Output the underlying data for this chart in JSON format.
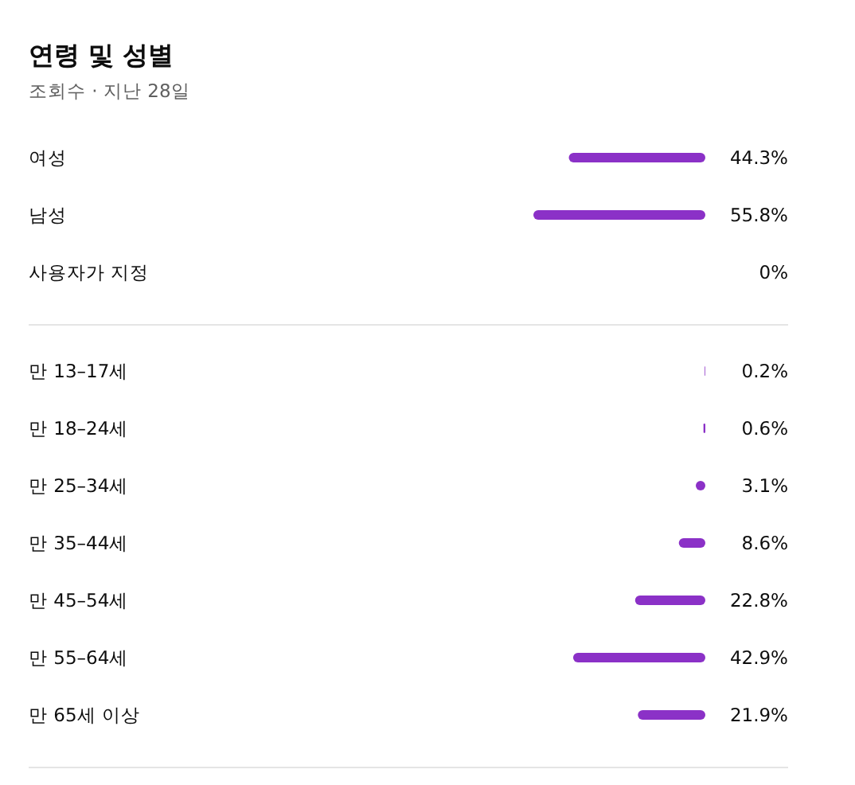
{
  "chart_data": [
    {
      "type": "bar",
      "orientation": "horizontal",
      "title": "연령 및 성별",
      "subtitle": "조회수 · 지난 28일",
      "categories": [
        "여성",
        "남성",
        "사용자가 지정"
      ],
      "values": [
        44.3,
        55.8,
        0
      ],
      "value_labels": [
        "44.3%",
        "55.8%",
        "0%"
      ],
      "color": "#8b31c7"
    },
    {
      "type": "bar",
      "orientation": "horizontal",
      "categories": [
        "만 13–17세",
        "만 18–24세",
        "만 25–34세",
        "만 35–44세",
        "만 45–54세",
        "만 55–64세",
        "만 65세 이상"
      ],
      "values": [
        0.2,
        0.6,
        3.1,
        8.6,
        22.8,
        42.9,
        21.9
      ],
      "value_labels": [
        "0.2%",
        "0.6%",
        "3.1%",
        "8.6%",
        "22.8%",
        "42.9%",
        "21.9%"
      ],
      "color": "#8b31c7"
    }
  ]
}
